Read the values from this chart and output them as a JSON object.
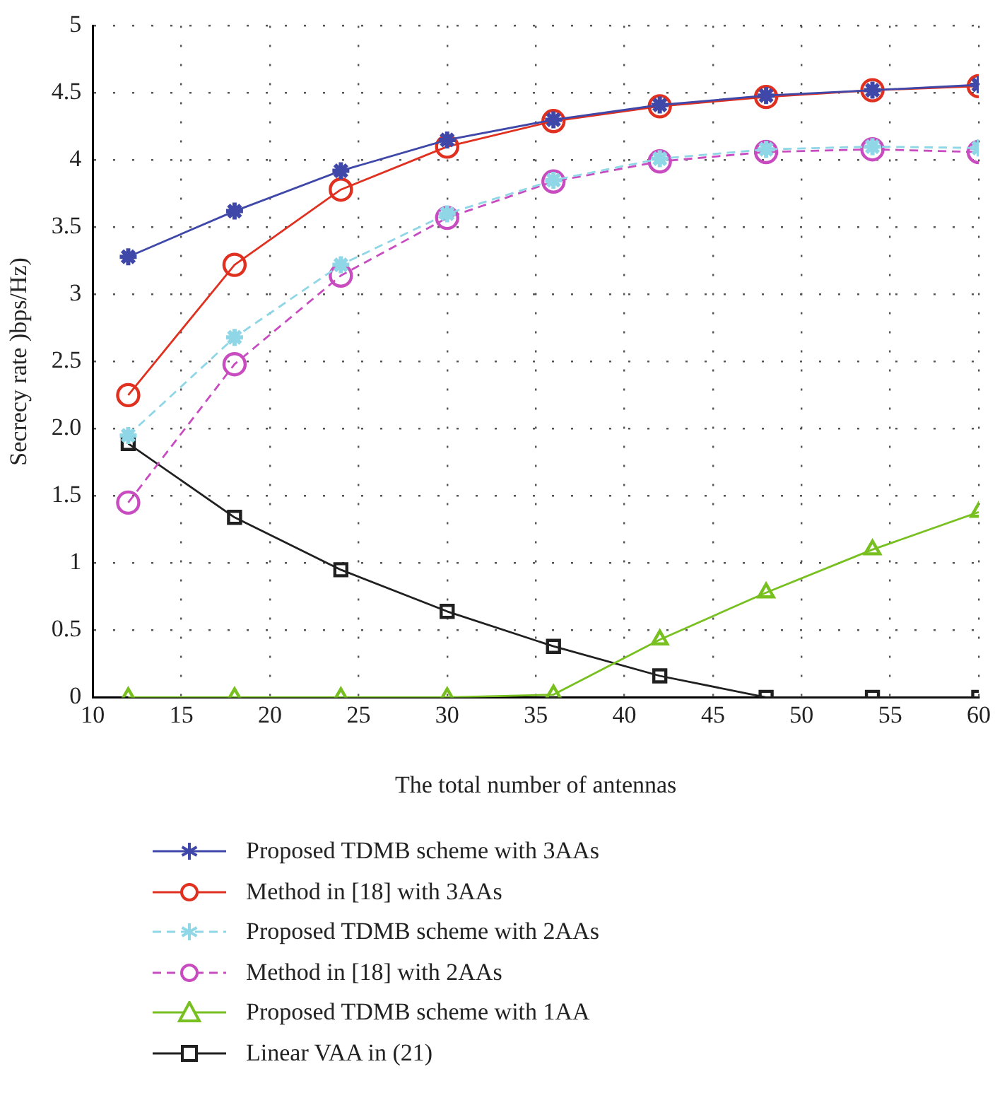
{
  "chart_data": {
    "type": "line",
    "xlabel": "The total number of antennas",
    "ylabel": "Secrecy rate )bps/Hz)",
    "x": [
      12,
      18,
      24,
      30,
      36,
      42,
      48,
      54,
      60
    ],
    "xlim": [
      10,
      60
    ],
    "xticks": [
      10,
      15,
      20,
      25,
      30,
      35,
      40,
      45,
      50,
      55,
      60
    ],
    "ylim": [
      0,
      5
    ],
    "yticks": [
      0,
      0.5,
      1,
      1.5,
      {
        "value": 2,
        "label": "2.0"
      },
      2.5,
      3,
      3.5,
      4,
      4.5,
      5
    ],
    "grid": true,
    "legend": "bottom",
    "series": [
      {
        "name": "Proposed TDMB scheme with 3AAs",
        "color": "#3f48a8",
        "marker": "cross",
        "line_style": "solid",
        "values": [
          3.28,
          3.62,
          3.92,
          4.15,
          4.3,
          4.41,
          4.48,
          4.52,
          4.56
        ]
      },
      {
        "name": "Method in [18] with 3AAs",
        "color": "#e03020",
        "marker": "circle",
        "line_style": "solid",
        "values": [
          2.25,
          3.22,
          3.78,
          4.1,
          4.29,
          4.4,
          4.47,
          4.52,
          4.55
        ]
      },
      {
        "name": "Proposed TDMB scheme with 2AAs",
        "color": "#8fd6e6",
        "marker": "cross",
        "line_style": "dashed",
        "values": [
          1.95,
          2.68,
          3.22,
          3.6,
          3.85,
          4.01,
          4.08,
          4.1,
          4.09
        ]
      },
      {
        "name": "Method in [18] with 2AAs",
        "color": "#c84cc0",
        "marker": "circle",
        "line_style": "dashed",
        "values": [
          1.45,
          2.48,
          3.14,
          3.57,
          3.84,
          3.99,
          4.06,
          4.08,
          4.06
        ]
      },
      {
        "name": "Proposed TDMB scheme with 1AA",
        "color": "#78c020",
        "marker": "triangle",
        "line_style": "solid",
        "values": [
          0,
          0,
          0,
          0,
          0.02,
          0.43,
          0.78,
          1.1,
          1.38
        ]
      },
      {
        "name": "Linear VAA in (21)",
        "color": "#202020",
        "marker": "square",
        "line_style": "solid",
        "values": [
          1.89,
          1.34,
          0.95,
          0.64,
          0.38,
          0.16,
          0,
          0,
          0
        ]
      }
    ]
  }
}
